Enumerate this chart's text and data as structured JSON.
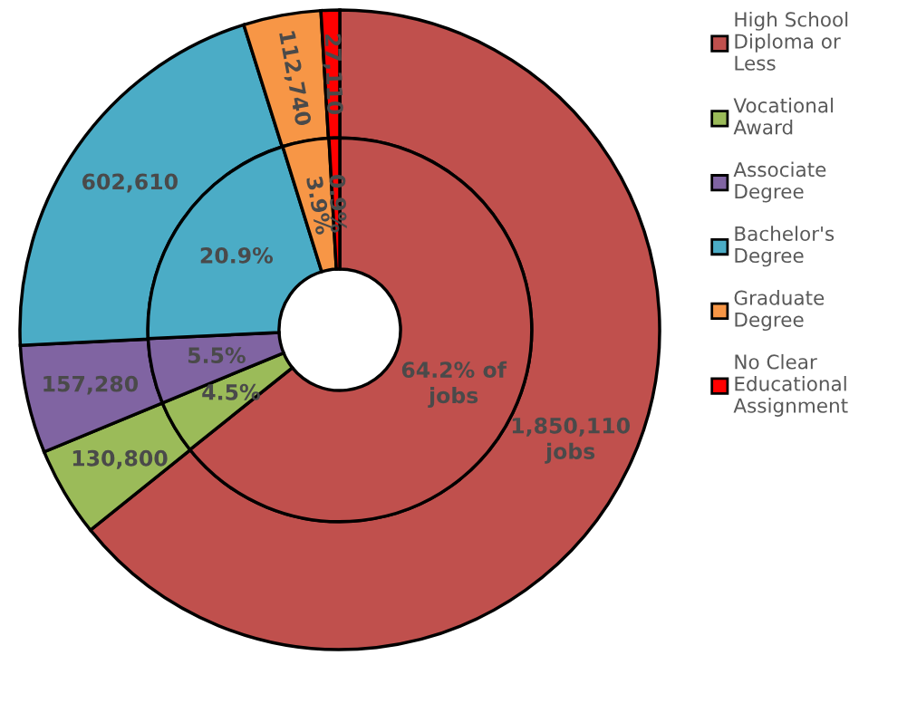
{
  "chart_data": {
    "type": "donut",
    "categories": [
      "High School Diploma or Less",
      "Vocational Award",
      "Associate Degree",
      "Bachelor's Degree",
      "Graduate Degree",
      "No Clear Educational Assignment"
    ],
    "colors": [
      "#c0504d",
      "#9bbb59",
      "#8064a2",
      "#4bacc6",
      "#f79646",
      "#ff0000"
    ],
    "series": [
      {
        "values": [
          1850110,
          130800,
          157280,
          602610,
          112740,
          27110
        ],
        "value_labels": [
          "1,850,110 jobs",
          "130,800",
          "157,280",
          "602,610",
          "112,740",
          "27,110"
        ]
      },
      {
        "values": [
          64.2,
          4.5,
          5.5,
          20.9,
          3.9,
          0.9
        ],
        "value_labels": [
          "64.2% of jobs",
          "4.5%",
          "5.5%",
          "20.9%",
          "3.9%",
          "0.9%"
        ]
      }
    ],
    "legend": "right"
  }
}
